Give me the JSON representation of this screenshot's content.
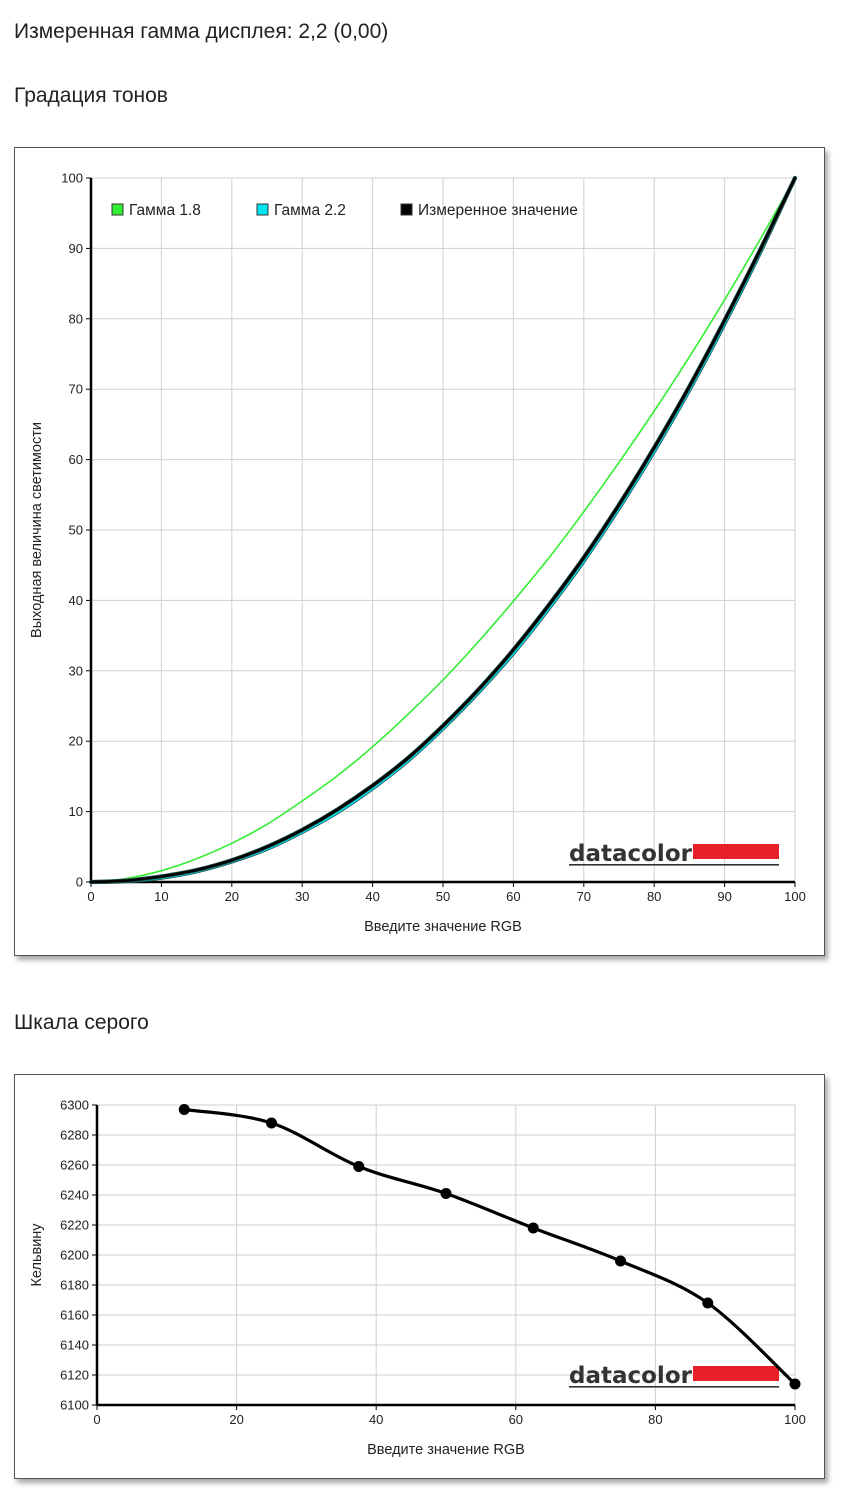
{
  "gamma_summary": "Измеренная гамма дисплея: 2,2 (0,00)",
  "tone_section_title": "Градация тонов",
  "gray_section_title": "Шкала серого",
  "logo_text": "datacolor",
  "logo_color": "#e8202a",
  "chart_data": [
    {
      "type": "line",
      "xlabel": "Введите значение RGB",
      "ylabel": "Выходная величина светимости",
      "xlim": [
        0,
        100
      ],
      "ylim": [
        0,
        100
      ],
      "x_ticks": [
        0,
        10,
        20,
        30,
        40,
        50,
        60,
        70,
        80,
        90,
        100
      ],
      "y_ticks": [
        0,
        10,
        20,
        30,
        40,
        50,
        60,
        70,
        80,
        90,
        100
      ],
      "grid": true,
      "legend_position": "top-left",
      "series": [
        {
          "name": "Гамма 1.8",
          "color": "#33ee33",
          "x": [
            0,
            5,
            10,
            15,
            20,
            25,
            30,
            35,
            40,
            45,
            50,
            55,
            60,
            65,
            70,
            75,
            80,
            85,
            90,
            95,
            100
          ],
          "y": [
            0,
            0.5,
            1.6,
            3.3,
            5.5,
            8.2,
            11.5,
            15.1,
            19.2,
            23.8,
            28.7,
            34.1,
            39.9,
            46.0,
            52.6,
            59.6,
            66.9,
            74.6,
            82.7,
            91.2,
            100
          ]
        },
        {
          "name": "Гамма 2.2",
          "color": "#00e5ee",
          "x": [
            0,
            5,
            10,
            15,
            20,
            25,
            30,
            35,
            40,
            45,
            50,
            55,
            60,
            65,
            70,
            75,
            80,
            85,
            90,
            95,
            100
          ],
          "y": [
            0,
            0.1,
            0.6,
            1.5,
            2.9,
            4.7,
            7.1,
            9.9,
            13.3,
            17.2,
            21.8,
            26.9,
            32.5,
            38.8,
            45.6,
            53.1,
            61.2,
            69.9,
            79.3,
            89.3,
            100
          ]
        },
        {
          "name": "Измеренное значение",
          "color": "#000000",
          "x": [
            0,
            5,
            10,
            15,
            20,
            25,
            30,
            35,
            40,
            45,
            50,
            55,
            60,
            65,
            70,
            75,
            80,
            85,
            90,
            95,
            100
          ],
          "y": [
            0,
            0.2,
            0.8,
            1.7,
            3.1,
            5.0,
            7.4,
            10.3,
            13.7,
            17.6,
            22.2,
            27.3,
            33.0,
            39.3,
            46.1,
            53.6,
            61.7,
            70.4,
            79.8,
            89.7,
            100
          ]
        }
      ]
    },
    {
      "type": "line",
      "xlabel": "Введите значение RGB",
      "ylabel": "Кельвину",
      "xlim": [
        0,
        100
      ],
      "ylim": [
        6100,
        6300
      ],
      "x_ticks": [
        0,
        20,
        40,
        60,
        80,
        100
      ],
      "y_ticks": [
        6100,
        6120,
        6140,
        6160,
        6180,
        6200,
        6220,
        6240,
        6260,
        6280,
        6300
      ],
      "grid": true,
      "series": [
        {
          "color": "#000000",
          "x": [
            12.5,
            25,
            37.5,
            50,
            62.5,
            75,
            87.5,
            100
          ],
          "y": [
            6297,
            6288,
            6259,
            6241,
            6218,
            6196,
            6168,
            6114
          ]
        }
      ]
    }
  ]
}
